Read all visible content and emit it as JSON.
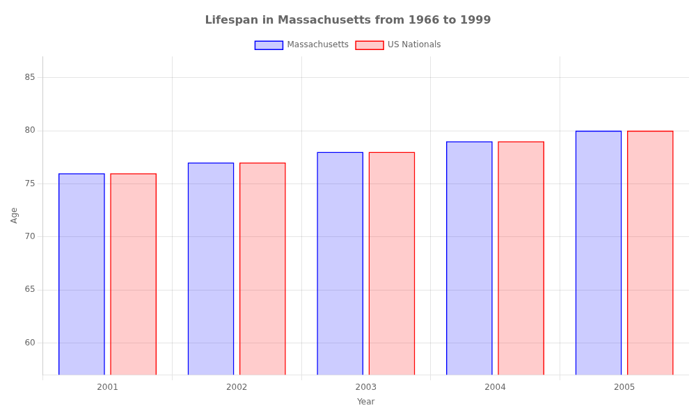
{
  "chart_data": {
    "type": "bar",
    "title": "Lifespan in Massachusetts from 1966 to 1999",
    "x_label": "Year",
    "y_label": "Age",
    "categories": [
      "2001",
      "2002",
      "2003",
      "2004",
      "2005"
    ],
    "series": [
      {
        "name": "Massachusetts",
        "color": "#0000ff",
        "values": [
          76,
          77,
          78,
          79,
          80
        ]
      },
      {
        "name": "US Nationals",
        "color": "#ff0000",
        "values": [
          76,
          77,
          78,
          79,
          80
        ]
      }
    ],
    "ylim": [
      57,
      87
    ],
    "yticks": [
      60,
      65,
      70,
      75,
      80,
      85
    ],
    "grid": true,
    "legend": "top"
  }
}
